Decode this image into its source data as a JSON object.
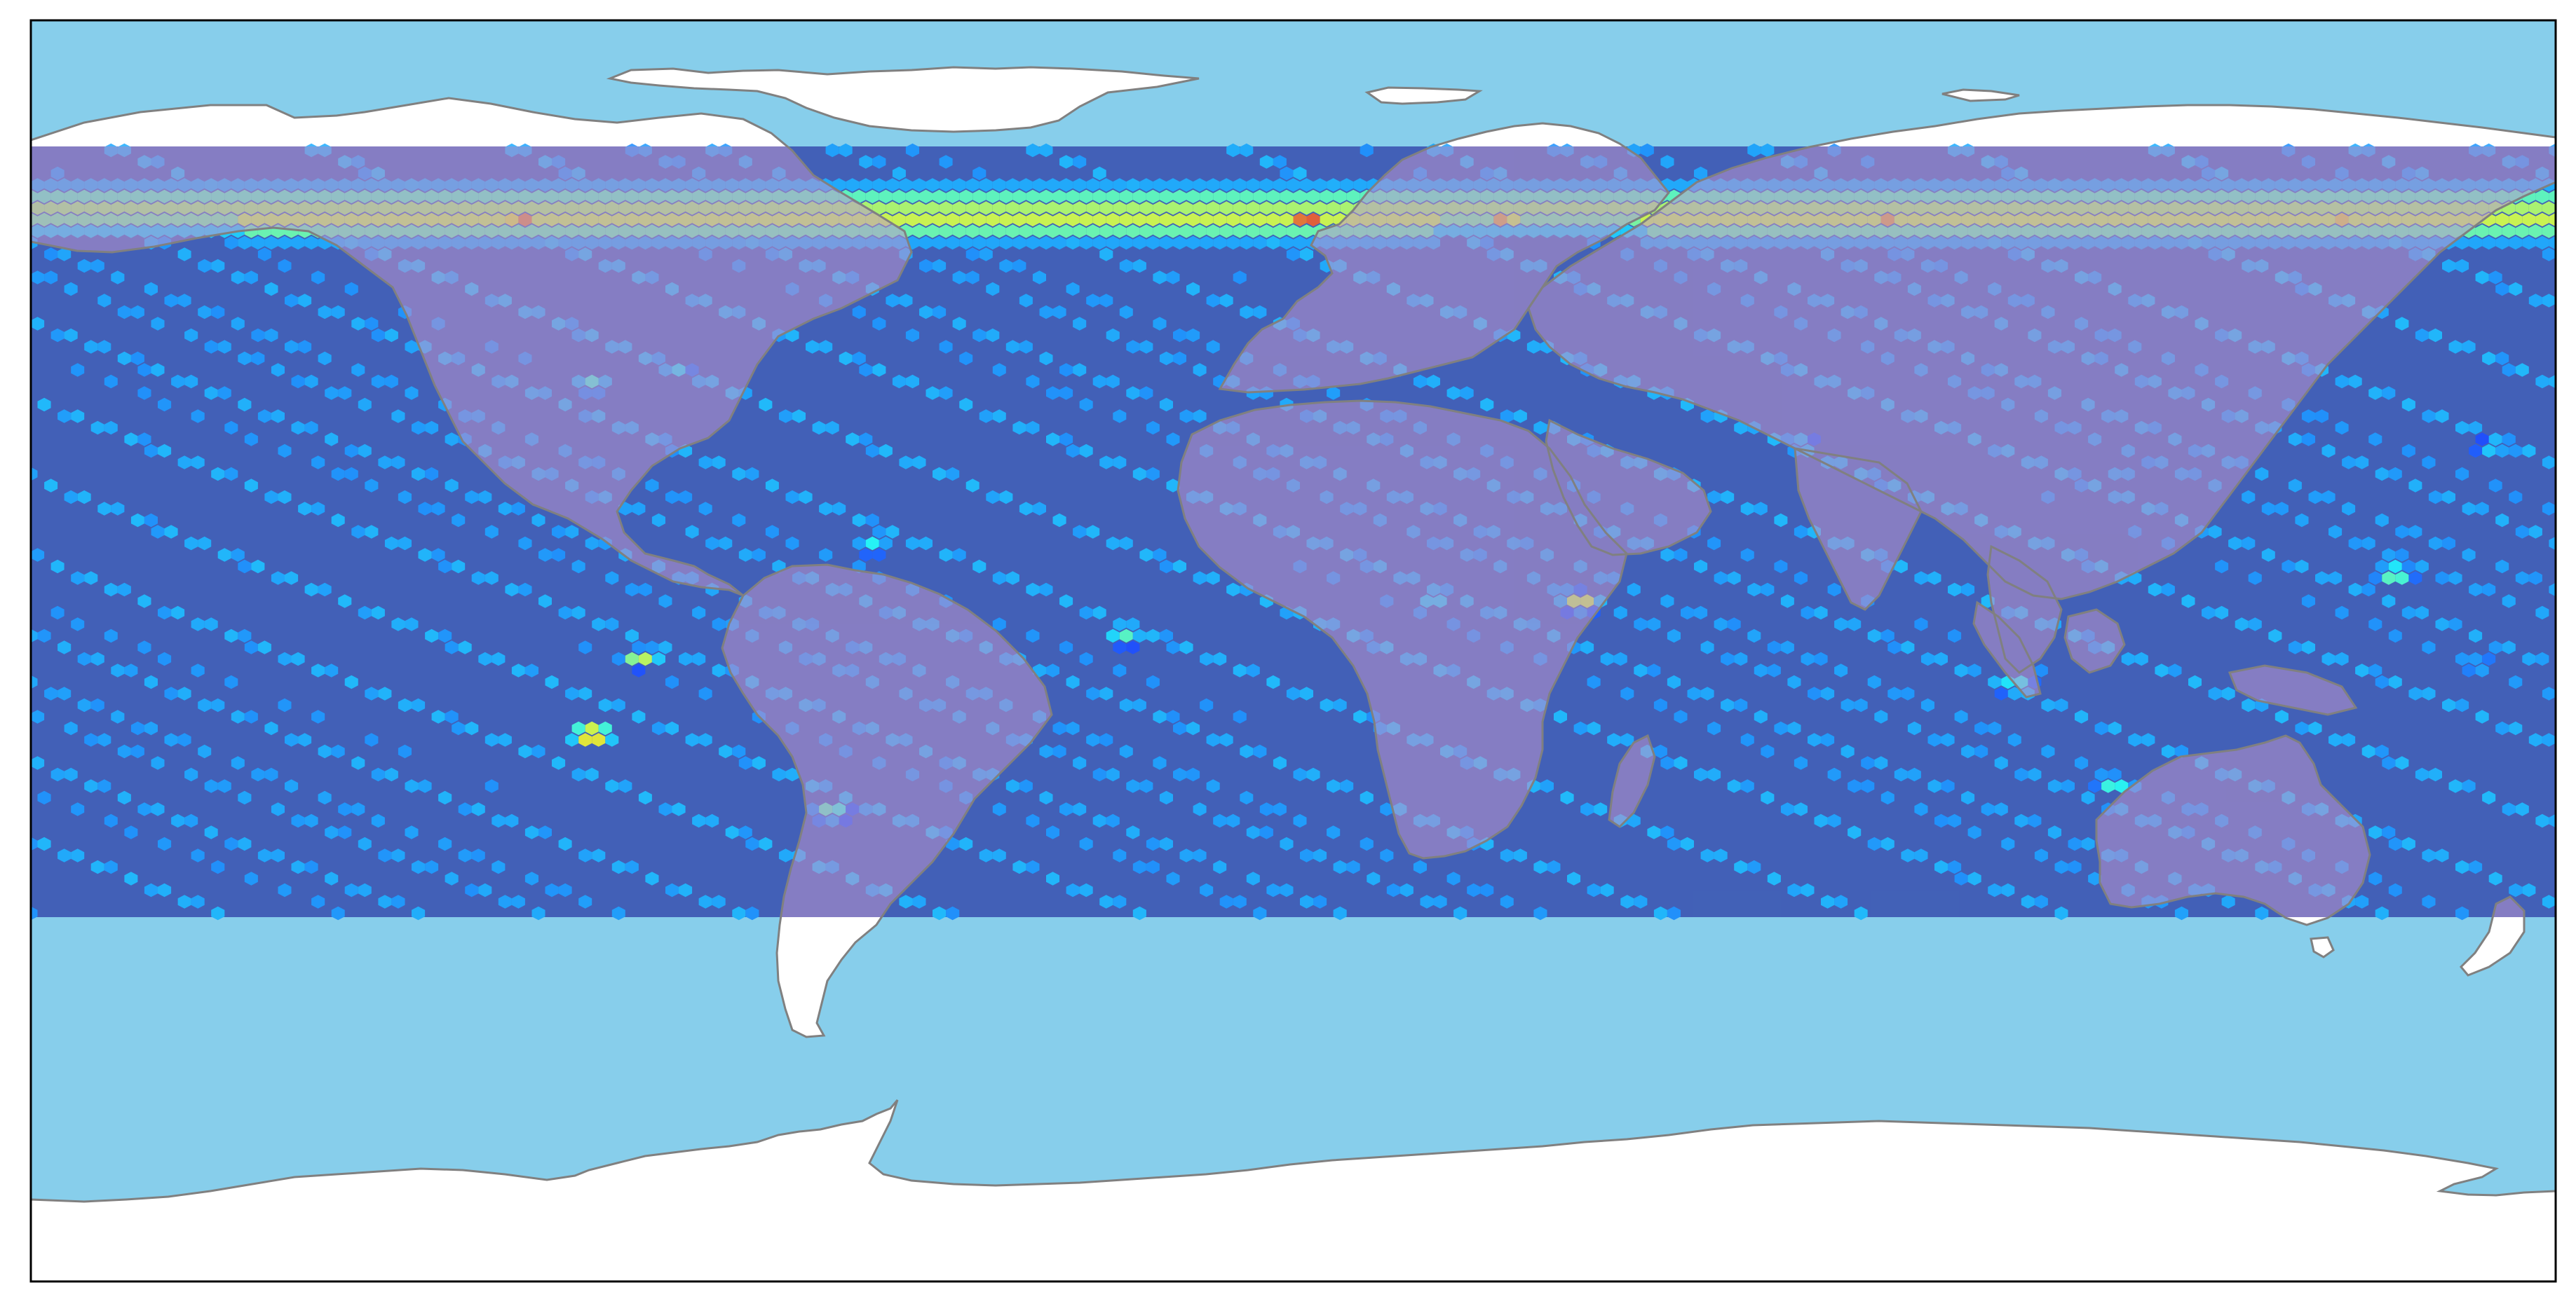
{
  "map": {
    "projection": "plate-carree",
    "frame_color": "#000000",
    "colors": {
      "ocean": "#87CEEB",
      "land": "#FFFFFF",
      "coastline": "#808080",
      "hexbin_base": "#2B3CA6",
      "land_overlay": "#A48CC8"
    },
    "hexbin": {
      "colormap": "jet",
      "alpha": 0.75,
      "lat_range": [
        -38,
        72
      ],
      "lon_range": [
        -180,
        180
      ]
    }
  },
  "chart_data": {
    "type": "heatmap",
    "xlim": [
      -180,
      180
    ],
    "ylim": [
      -90,
      90
    ],
    "grid": false,
    "density_bands": [
      {
        "lat": 63,
        "lon_from": -180,
        "lon_to": 180,
        "level": 0.55
      },
      {
        "lat": 62,
        "lon_from": -150,
        "lon_to": 20,
        "level": 0.6
      },
      {
        "lat": 62,
        "lon_from": 50,
        "lon_to": 180,
        "level": 0.6
      }
    ],
    "hotspots": [
      {
        "lon": 2,
        "lat": 62,
        "level": 0.95
      },
      {
        "lon": -110,
        "lat": 62,
        "level": 0.85
      },
      {
        "lon": 30,
        "lat": 62,
        "level": 0.8
      },
      {
        "lon": 85,
        "lat": 62,
        "level": 0.8
      },
      {
        "lon": 150,
        "lat": 62,
        "level": 0.75
      },
      {
        "lon": -100,
        "lat": 38,
        "level": 0.45
      },
      {
        "lon": -60,
        "lat": 15,
        "level": 0.4
      },
      {
        "lon": -93,
        "lat": -1,
        "level": 0.6
      },
      {
        "lon": -100,
        "lat": -12,
        "level": 0.85
      },
      {
        "lon": -66,
        "lat": -23,
        "level": 0.5
      },
      {
        "lon": -24,
        "lat": 2,
        "level": 0.45
      },
      {
        "lon": 41,
        "lat": 7,
        "level": 0.65
      },
      {
        "lon": 20,
        "lat": 7,
        "level": 0.35
      },
      {
        "lon": 103,
        "lat": -5,
        "level": 0.45
      },
      {
        "lon": 157,
        "lat": 11,
        "level": 0.55
      },
      {
        "lon": 117,
        "lat": -19,
        "level": 0.45
      },
      {
        "lon": 169,
        "lat": -2,
        "level": 0.35
      },
      {
        "lon": 171,
        "lat": 29,
        "level": 0.35
      },
      {
        "lon": 118,
        "lat": 25,
        "level": 0.3
      },
      {
        "lon": 72,
        "lat": 30,
        "level": 0.3
      },
      {
        "lon": -88,
        "lat": 40,
        "level": 0.35
      }
    ]
  }
}
